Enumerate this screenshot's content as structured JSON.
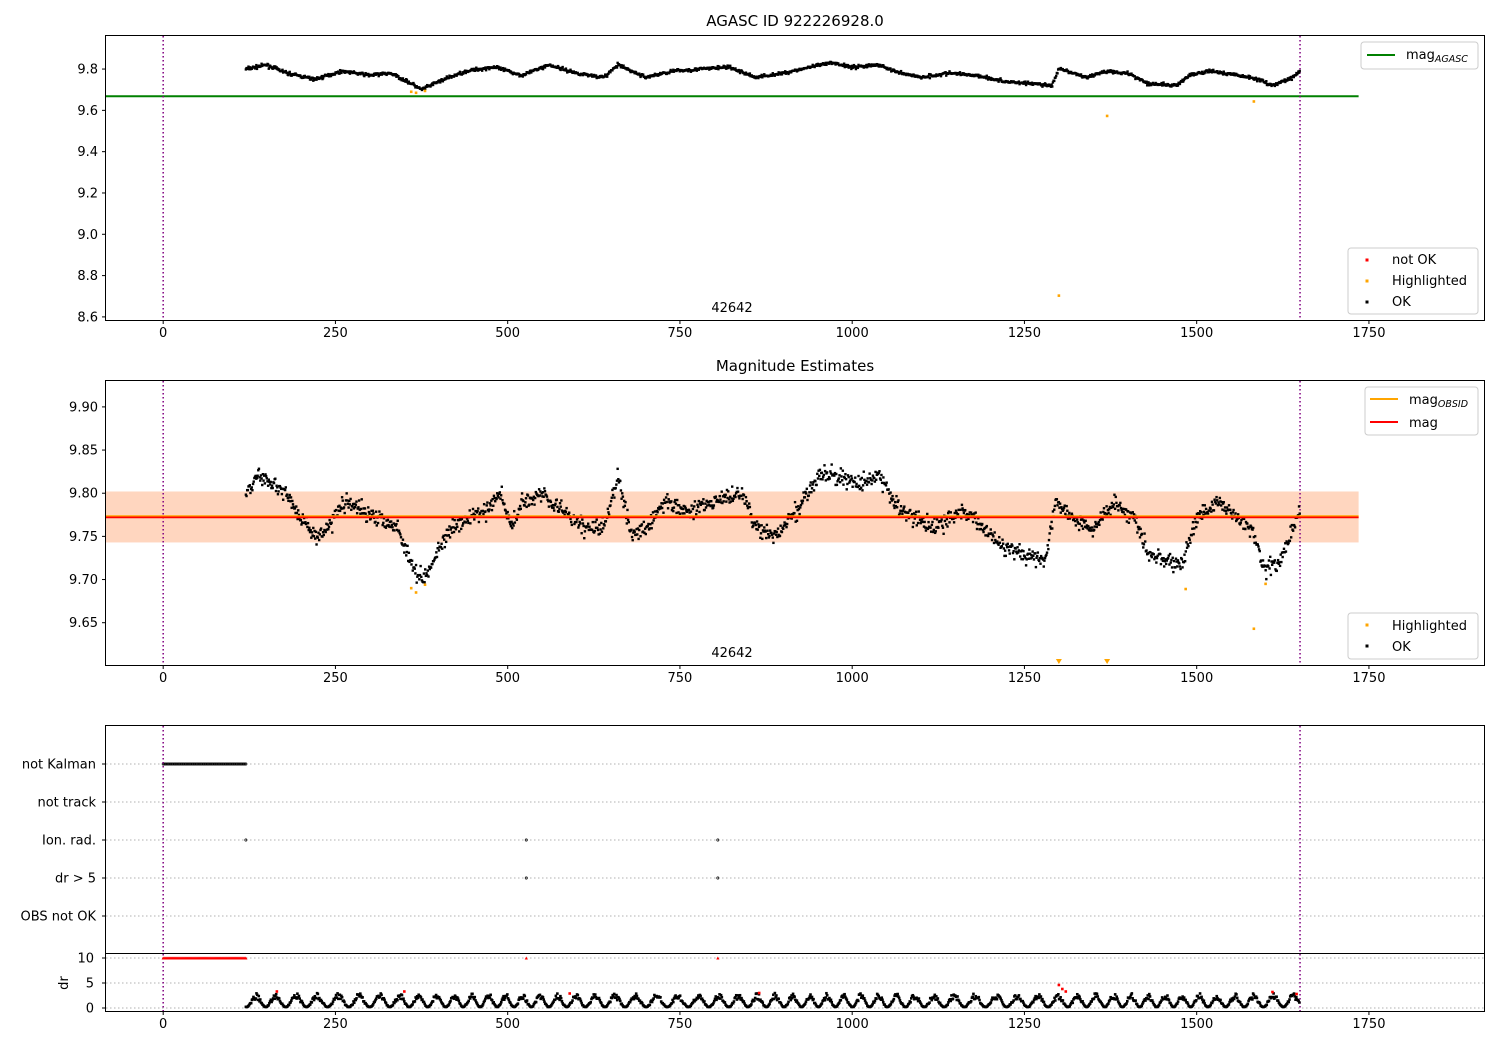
{
  "chart_data": [
    {
      "type": "scatter",
      "title": "AGASC ID 922226928.0",
      "annotation": "42642",
      "xlim": [
        -83,
        1917
      ],
      "ylim": [
        8.585,
        9.96
      ],
      "xticks": [
        0,
        250,
        500,
        750,
        1000,
        1250,
        1500,
        1750
      ],
      "yticks": [
        8.6,
        8.8,
        9.0,
        9.2,
        9.4,
        9.6,
        9.8
      ],
      "ytick_labels": [
        "8.6",
        "8.8",
        "9.0",
        "9.2",
        "9.4",
        "9.6",
        "9.8"
      ],
      "vlines": [
        0,
        1650
      ],
      "hlines": [
        {
          "name": "mag_AGASC",
          "value": 9.668,
          "x": [
            -83,
            1735
          ],
          "color": "#008000"
        }
      ],
      "ok_series": {
        "name": "OK",
        "color": "#000000",
        "x_start": 120,
        "x_end": 1650,
        "points": [
          [
            120,
            9.8
          ],
          [
            150,
            9.82
          ],
          [
            180,
            9.78
          ],
          [
            220,
            9.75
          ],
          [
            260,
            9.79
          ],
          [
            300,
            9.77
          ],
          [
            330,
            9.78
          ],
          [
            360,
            9.73
          ],
          [
            375,
            9.7
          ],
          [
            400,
            9.74
          ],
          [
            440,
            9.79
          ],
          [
            480,
            9.81
          ],
          [
            500,
            9.79
          ],
          [
            520,
            9.77
          ],
          [
            560,
            9.82
          ],
          [
            600,
            9.78
          ],
          [
            640,
            9.76
          ],
          [
            660,
            9.82
          ],
          [
            700,
            9.76
          ],
          [
            740,
            9.79
          ],
          [
            780,
            9.8
          ],
          [
            820,
            9.81
          ],
          [
            860,
            9.76
          ],
          [
            900,
            9.78
          ],
          [
            940,
            9.81
          ],
          [
            970,
            9.83
          ],
          [
            1000,
            9.81
          ],
          [
            1040,
            9.82
          ],
          [
            1060,
            9.79
          ],
          [
            1100,
            9.76
          ],
          [
            1140,
            9.78
          ],
          [
            1180,
            9.77
          ],
          [
            1220,
            9.74
          ],
          [
            1260,
            9.73
          ],
          [
            1290,
            9.72
          ],
          [
            1300,
            9.8
          ],
          [
            1340,
            9.76
          ],
          [
            1370,
            9.79
          ],
          [
            1400,
            9.78
          ],
          [
            1430,
            9.73
          ],
          [
            1470,
            9.72
          ],
          [
            1490,
            9.77
          ],
          [
            1520,
            9.79
          ],
          [
            1560,
            9.77
          ],
          [
            1590,
            9.75
          ],
          [
            1610,
            9.72
          ],
          [
            1640,
            9.76
          ],
          [
            1650,
            9.79
          ]
        ],
        "noise": 0.01
      },
      "highlighted": {
        "name": "Highlighted",
        "color": "#FFA500",
        "x": [
          360,
          367,
          380,
          1370,
          1583
        ],
        "y": [
          9.69,
          9.685,
          9.694,
          9.573,
          9.643
        ]
      },
      "not_ok": {
        "name": "not OK",
        "color": "#FF0000",
        "x": [],
        "y": []
      },
      "outliers": [
        {
          "x": 1300,
          "y": 8.703,
          "color": "#FFA500"
        }
      ],
      "legend_top": [
        {
          "name": "mag_AGASC",
          "color": "#008000"
        }
      ],
      "legend_bottom": [
        {
          "name": "not OK",
          "color": "#FF0000"
        },
        {
          "name": "Highlighted",
          "color": "#FFA500"
        },
        {
          "name": "OK",
          "color": "#000000"
        }
      ]
    },
    {
      "type": "scatter",
      "title": "Magnitude Estimates",
      "annotation": "42642",
      "xlim": [
        -83,
        1917
      ],
      "ylim": [
        9.601,
        9.93
      ],
      "xticks": [
        0,
        250,
        500,
        750,
        1000,
        1250,
        1500,
        1750
      ],
      "yticks": [
        9.65,
        9.7,
        9.75,
        9.8,
        9.85,
        9.9
      ],
      "ytick_labels": [
        "9.65",
        "9.70",
        "9.75",
        "9.80",
        "9.85",
        "9.90"
      ],
      "vlines": [
        0,
        1650
      ],
      "hlines": [
        {
          "name": "mag_OBSID",
          "value": 9.773,
          "x": [
            -83,
            1735
          ],
          "color": "#FFA500"
        },
        {
          "name": "mag",
          "value": 9.772,
          "x": [
            -83,
            1735
          ],
          "color": "#FF0000"
        }
      ],
      "bands": [
        {
          "y": [
            9.743,
            9.802
          ],
          "x": [
            -83,
            1735
          ],
          "color": "#FF9999",
          "opacity": 0.25
        },
        {
          "y": [
            9.743,
            9.802
          ],
          "x": [
            -83,
            1735
          ],
          "color": "#FFB366",
          "opacity": 0.3
        }
      ],
      "ok_series": {
        "name": "OK",
        "color": "#000000",
        "x_start": 120,
        "x_end": 1650,
        "points": [
          [
            120,
            9.8
          ],
          [
            140,
            9.82
          ],
          [
            160,
            9.81
          ],
          [
            180,
            9.8
          ],
          [
            200,
            9.77
          ],
          [
            220,
            9.75
          ],
          [
            240,
            9.76
          ],
          [
            260,
            9.79
          ],
          [
            290,
            9.78
          ],
          [
            320,
            9.77
          ],
          [
            340,
            9.76
          ],
          [
            360,
            9.72
          ],
          [
            375,
            9.7
          ],
          [
            390,
            9.72
          ],
          [
            410,
            9.75
          ],
          [
            440,
            9.77
          ],
          [
            470,
            9.78
          ],
          [
            490,
            9.8
          ],
          [
            505,
            9.76
          ],
          [
            520,
            9.79
          ],
          [
            550,
            9.8
          ],
          [
            580,
            9.78
          ],
          [
            610,
            9.76
          ],
          [
            640,
            9.76
          ],
          [
            660,
            9.82
          ],
          [
            680,
            9.75
          ],
          [
            700,
            9.76
          ],
          [
            730,
            9.79
          ],
          [
            760,
            9.78
          ],
          [
            800,
            9.79
          ],
          [
            840,
            9.8
          ],
          [
            860,
            9.76
          ],
          [
            890,
            9.75
          ],
          [
            920,
            9.78
          ],
          [
            950,
            9.82
          ],
          [
            980,
            9.82
          ],
          [
            1010,
            9.81
          ],
          [
            1040,
            9.82
          ],
          [
            1060,
            9.79
          ],
          [
            1090,
            9.77
          ],
          [
            1120,
            9.76
          ],
          [
            1160,
            9.78
          ],
          [
            1190,
            9.76
          ],
          [
            1220,
            9.74
          ],
          [
            1250,
            9.73
          ],
          [
            1280,
            9.72
          ],
          [
            1295,
            9.79
          ],
          [
            1320,
            9.77
          ],
          [
            1350,
            9.76
          ],
          [
            1380,
            9.79
          ],
          [
            1410,
            9.77
          ],
          [
            1430,
            9.73
          ],
          [
            1460,
            9.72
          ],
          [
            1480,
            9.72
          ],
          [
            1500,
            9.77
          ],
          [
            1530,
            9.79
          ],
          [
            1560,
            9.77
          ],
          [
            1580,
            9.76
          ],
          [
            1600,
            9.71
          ],
          [
            1620,
            9.72
          ],
          [
            1640,
            9.76
          ],
          [
            1650,
            9.78
          ]
        ],
        "noise": 0.012
      },
      "highlighted": {
        "name": "Highlighted",
        "color": "#FFA500",
        "x": [
          360,
          367,
          380,
          1484,
          1583,
          1600
        ],
        "y": [
          9.69,
          9.685,
          9.694,
          9.689,
          9.643,
          9.695
        ]
      },
      "offscale_markers": [
        {
          "x": 1300,
          "color": "#FFA500"
        },
        {
          "x": 1370,
          "color": "#FFA500"
        }
      ],
      "legend_top": [
        {
          "name": "mag_OBSID",
          "color": "#FFA500"
        },
        {
          "name": "mag",
          "color": "#FF0000"
        }
      ],
      "legend_bottom": [
        {
          "name": "Highlighted",
          "color": "#FFA500"
        },
        {
          "name": "OK",
          "color": "#000000"
        }
      ]
    },
    {
      "type": "scatter",
      "title": "",
      "xlim": [
        -83,
        1917
      ],
      "vlines": [
        0,
        1650
      ],
      "flag_categories": [
        "not Kalman",
        "not track",
        "Ion. rad.",
        "dr > 5",
        "OBS not OK"
      ],
      "flags": {
        "not Kalman": {
          "x_range": [
            0,
            120
          ]
        },
        "not track": {
          "x": []
        },
        "Ion. rad.": {
          "x": [
            120,
            527,
            805
          ]
        },
        "dr > 5": {
          "x": [
            527,
            805
          ]
        },
        "OBS not OK": {
          "x": []
        }
      }
    },
    {
      "type": "scatter",
      "title": "",
      "ylabel": "dr",
      "xlim": [
        -83,
        1917
      ],
      "ylim": [
        -0.6,
        10.8
      ],
      "xticks": [
        0,
        250,
        500,
        750,
        1000,
        1250,
        1500,
        1750
      ],
      "yticks": [
        0,
        5,
        10
      ],
      "ytick_labels": [
        "0",
        "5",
        "10"
      ],
      "vlines": [
        0,
        1650
      ],
      "clipped": {
        "color": "#FF0000",
        "x_range": [
          0,
          120
        ],
        "y": 10,
        "extra_x": [
          527,
          805
        ]
      },
      "dr_series": {
        "color": "#000000",
        "x_start": 120,
        "x_end": 1650,
        "range": [
          0.2,
          3.0
        ]
      },
      "red_points": [
        [
          165,
          3.3
        ],
        [
          350,
          3.3
        ],
        [
          590,
          2.9
        ],
        [
          865,
          3.0
        ],
        [
          1300,
          4.6
        ],
        [
          1305,
          3.8
        ],
        [
          1310,
          3.3
        ],
        [
          1610,
          3.2
        ],
        [
          1645,
          2.8
        ]
      ]
    }
  ]
}
